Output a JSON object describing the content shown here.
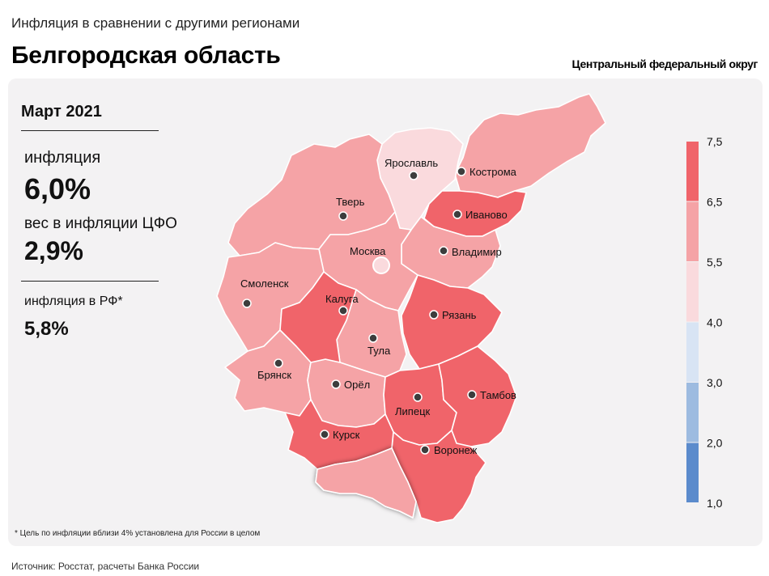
{
  "header": {
    "subtitle": "Инфляция в сравнении с другими регионами",
    "title": "Белгородская область",
    "district": "Центральный федеральный округ"
  },
  "stats": {
    "period": "Март 2021",
    "inflation_label": "инфляция",
    "inflation_value": "6,0%",
    "weight_label": "вес в инфляции ЦФО",
    "weight_value": "2,9%",
    "rf_label": "инфляция в РФ*",
    "rf_value": "5,8%"
  },
  "colors": {
    "very_high": "#f0646a",
    "high": "#f5a3a6",
    "mid": "#fadadd",
    "low": "#d8e4f4",
    "lower": "#9dbbe0",
    "lowest": "#5b8bcc",
    "selected_outline": "#000000"
  },
  "regions": [
    {
      "id": "yaroslavl",
      "name": "Ярославль",
      "class": "mid"
    },
    {
      "id": "kostroma",
      "name": "Кострома",
      "class": "high"
    },
    {
      "id": "ivanovo",
      "name": "Иваново",
      "class": "very_high"
    },
    {
      "id": "tver",
      "name": "Тверь",
      "class": "high"
    },
    {
      "id": "vladimir",
      "name": "Владимир",
      "class": "high"
    },
    {
      "id": "moscow",
      "name": "Москва",
      "class": "high"
    },
    {
      "id": "smolensk",
      "name": "Смоленск",
      "class": "high"
    },
    {
      "id": "kaluga",
      "name": "Калуга",
      "class": "very_high"
    },
    {
      "id": "ryazan",
      "name": "Рязань",
      "class": "very_high"
    },
    {
      "id": "tula",
      "name": "Тула",
      "class": "high"
    },
    {
      "id": "bryansk",
      "name": "Брянск",
      "class": "high"
    },
    {
      "id": "orel",
      "name": "Орёл",
      "class": "high"
    },
    {
      "id": "lipetsk",
      "name": "Липецк",
      "class": "very_high"
    },
    {
      "id": "tambov",
      "name": "Тамбов",
      "class": "very_high"
    },
    {
      "id": "kursk",
      "name": "Курск",
      "class": "very_high"
    },
    {
      "id": "voronezh",
      "name": "Воронеж",
      "class": "very_high"
    },
    {
      "id": "belgorod",
      "name": "Белгород",
      "class": "high",
      "selected": true
    }
  ],
  "legend": {
    "ticks": [
      "7,5",
      "6,5",
      "5,5",
      "4,0",
      "3,0",
      "2,0",
      "1,0"
    ],
    "bins": [
      {
        "from": 6.5,
        "to": 7.5,
        "color": "#f0646a"
      },
      {
        "from": 5.5,
        "to": 6.5,
        "color": "#f5a3a6"
      },
      {
        "from": 4.0,
        "to": 5.5,
        "color": "#fadadd"
      },
      {
        "from": 3.0,
        "to": 4.0,
        "color": "#d8e4f4"
      },
      {
        "from": 2.0,
        "to": 3.0,
        "color": "#9dbbe0"
      },
      {
        "from": 1.0,
        "to": 2.0,
        "color": "#5b8bcc"
      }
    ]
  },
  "footnote": "* Цель по инфляции вблизи 4% установлена для России в целом",
  "source": "Источник: Росстат, расчеты Банка России"
}
